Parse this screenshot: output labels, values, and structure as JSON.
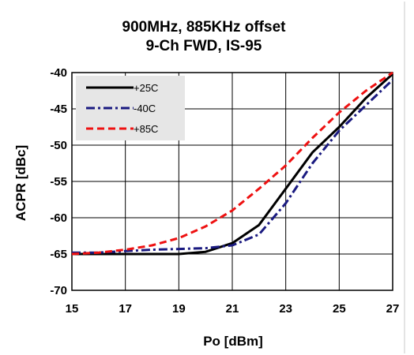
{
  "chart_data": {
    "type": "line",
    "title_lines": [
      "900MHz, 885KHz offset",
      "9-Ch FWD, IS-95"
    ],
    "xlabel": "Po [dBm]",
    "ylabel": "ACPR [dBc]",
    "xlim": [
      15,
      27
    ],
    "ylim": [
      -70,
      -40
    ],
    "xticks": [
      15,
      17,
      19,
      21,
      23,
      25,
      27
    ],
    "yticks": [
      -40,
      -45,
      -50,
      -55,
      -60,
      -65,
      -70
    ],
    "grid": true,
    "legend_position": "top-left",
    "series": [
      {
        "name": "+25C",
        "color": "#000000",
        "style": "solid",
        "x": [
          15,
          16,
          17,
          18,
          19,
          20,
          21,
          22,
          23,
          24,
          25,
          26,
          27
        ],
        "y": [
          -65.0,
          -65.0,
          -65.0,
          -65.0,
          -65.0,
          -64.7,
          -63.5,
          -61.0,
          -56.0,
          -51.0,
          -47.5,
          -43.5,
          -40.2
        ]
      },
      {
        "name": "-40C",
        "color": "#1a1a80",
        "style": "dashdot",
        "x": [
          15,
          16,
          17,
          18,
          19,
          20,
          21,
          22,
          23,
          24,
          25,
          26,
          27
        ],
        "y": [
          -64.8,
          -64.8,
          -64.6,
          -64.4,
          -64.3,
          -64.2,
          -63.8,
          -62.3,
          -58.0,
          -52.5,
          -48.0,
          -44.5,
          -41.0
        ]
      },
      {
        "name": "+85C",
        "color": "#ee1111",
        "style": "dashed",
        "x": [
          15,
          16,
          17,
          18,
          19,
          20,
          21,
          22,
          23,
          24,
          25,
          26,
          27
        ],
        "y": [
          -65.0,
          -64.8,
          -64.4,
          -63.8,
          -62.8,
          -61.2,
          -59.0,
          -56.0,
          -52.8,
          -49.0,
          -45.5,
          -42.5,
          -40.0
        ]
      }
    ]
  }
}
